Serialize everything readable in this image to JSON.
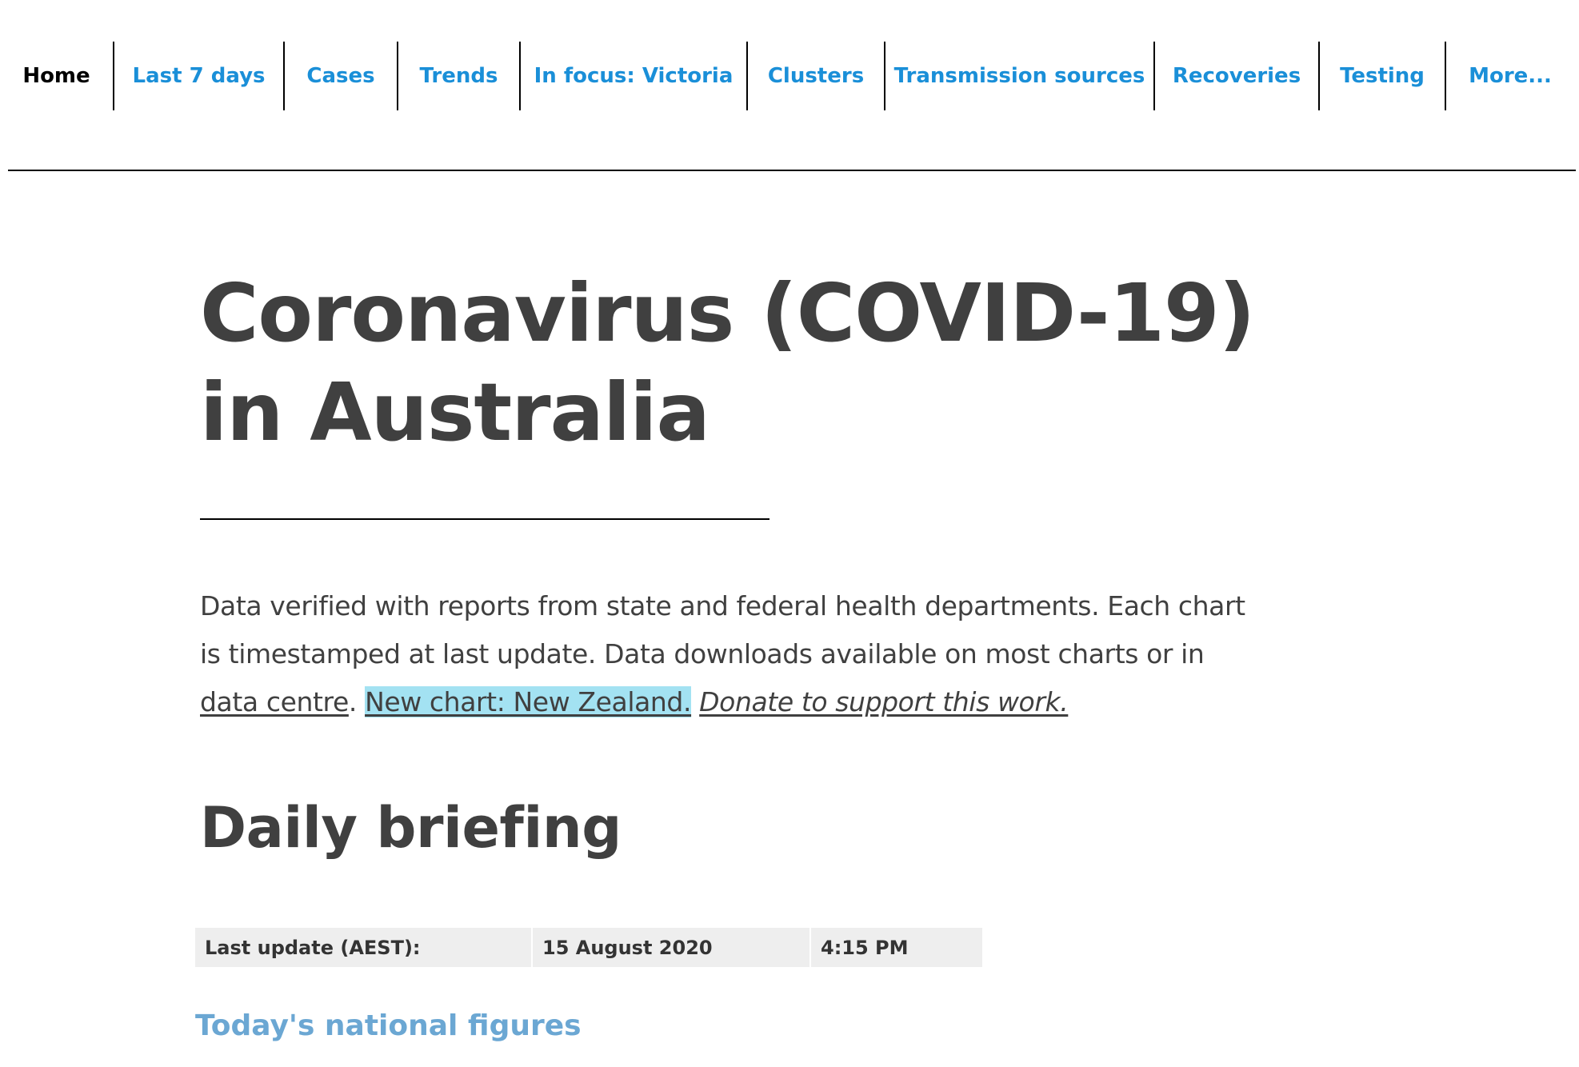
{
  "nav": {
    "items": [
      {
        "label": "Home",
        "active": true
      },
      {
        "label": "Last 7 days"
      },
      {
        "label": "Cases"
      },
      {
        "label": "Trends"
      },
      {
        "label": "In focus: Victoria"
      },
      {
        "label": "Clusters"
      },
      {
        "label": "Transmission sources"
      },
      {
        "label": "Recoveries"
      },
      {
        "label": "Testing"
      },
      {
        "label": "More..."
      }
    ]
  },
  "page": {
    "title_line1": "Coronavirus (COVID-19)",
    "title_line2": "in Australia"
  },
  "intro": {
    "text": "Data verified with reports from state and federal health departments. Each chart is timestamped at last update. Data downloads available on most charts or in ",
    "data_centre_link": "data centre",
    "separator": ".",
    "new_chart_link": "New chart: New Zealand.",
    "donate_link": "Donate to support this work."
  },
  "briefing": {
    "title": "Daily briefing",
    "update_label": "Last update (AEST):",
    "update_date": "15 August 2020",
    "update_time": "4:15 PM",
    "subhead": "Today's national figures"
  },
  "colors": {
    "nav_link": "#1a8fd8",
    "text": "#404040",
    "highlight": "#a3e2f2",
    "subhead": "#6ba7d3",
    "table_bg": "#eeeeee"
  }
}
